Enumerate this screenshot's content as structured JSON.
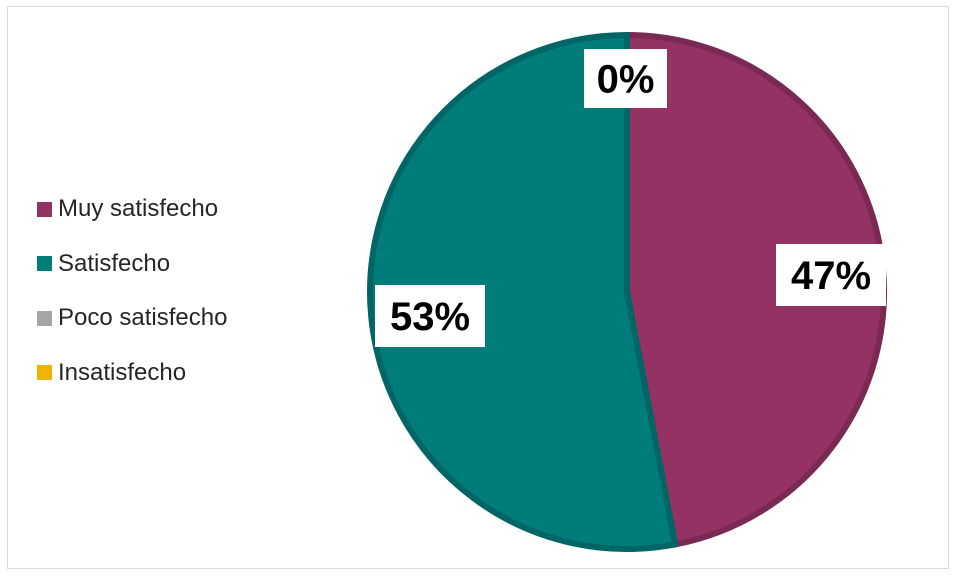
{
  "chart_data": {
    "type": "pie",
    "categories": [
      "Muy satisfecho",
      "Satisfecho",
      "Poco satisfecho",
      "Insatisfecho"
    ],
    "values": [
      47,
      53,
      0,
      0
    ],
    "labels": [
      "47%",
      "53%",
      "0%",
      ""
    ],
    "colors": [
      "#943264",
      "#007c7b",
      "#a5a5a5",
      "#f0b400"
    ],
    "legend_position": "left"
  }
}
